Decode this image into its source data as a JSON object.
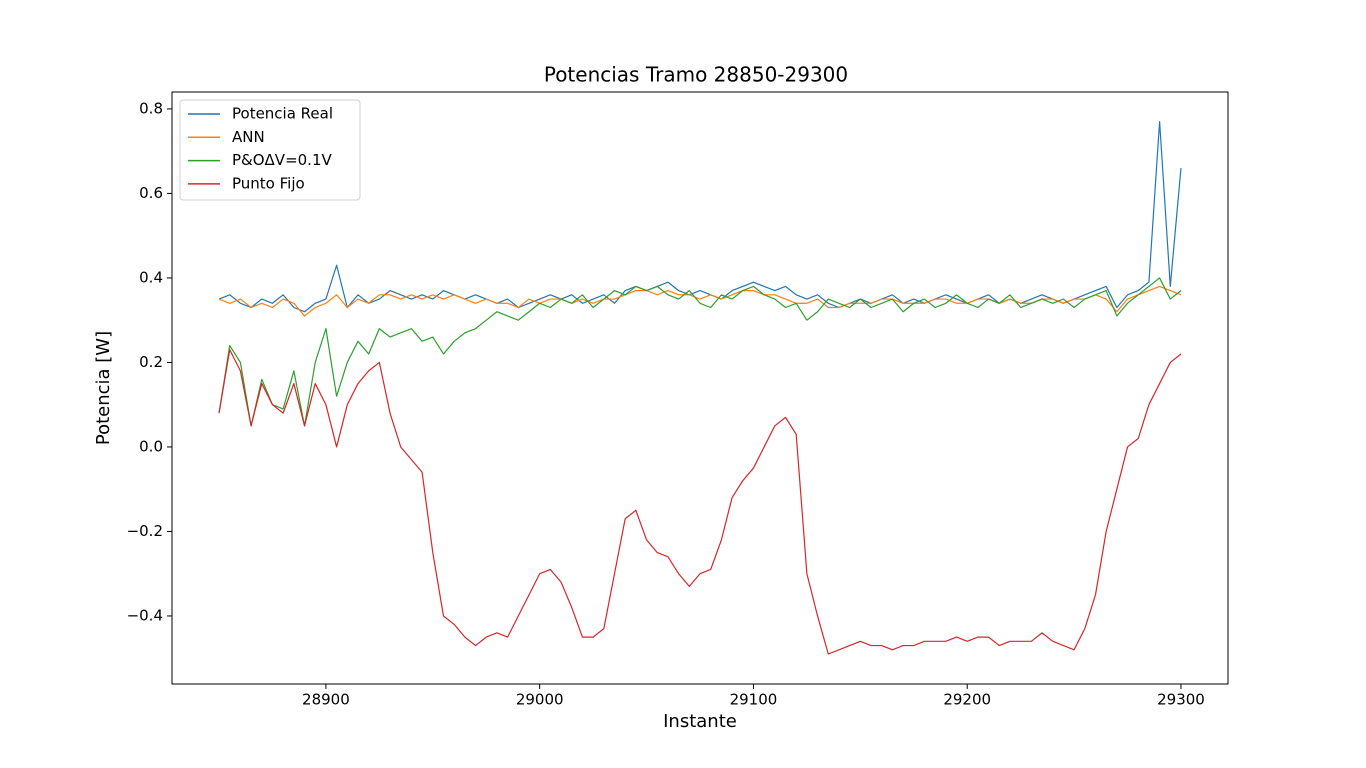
{
  "chart_data": {
    "type": "line",
    "title": "Potencias Tramo 28850-29300",
    "x_label": "Instante",
    "y_label": "Potencia [W]",
    "x": [
      28850,
      28855,
      28860,
      28865,
      28870,
      28875,
      28880,
      28885,
      28890,
      28895,
      28900,
      28905,
      28910,
      28915,
      28920,
      28925,
      28930,
      28935,
      28940,
      28945,
      28950,
      28955,
      28960,
      28965,
      28970,
      28975,
      28980,
      28985,
      28990,
      28995,
      29000,
      29005,
      29010,
      29015,
      29020,
      29025,
      29030,
      29035,
      29040,
      29045,
      29050,
      29055,
      29060,
      29065,
      29070,
      29075,
      29080,
      29085,
      29090,
      29095,
      29100,
      29105,
      29110,
      29115,
      29120,
      29125,
      29130,
      29135,
      29140,
      29145,
      29150,
      29155,
      29160,
      29165,
      29170,
      29175,
      29180,
      29185,
      29190,
      29195,
      29200,
      29205,
      29210,
      29215,
      29220,
      29225,
      29230,
      29235,
      29240,
      29245,
      29250,
      29255,
      29260,
      29265,
      29270,
      29275,
      29280,
      29285,
      29290,
      29295,
      29300
    ],
    "series": [
      {
        "name": "Potencia Real",
        "color": "#1f77b4",
        "values": [
          0.35,
          0.36,
          0.34,
          0.33,
          0.35,
          0.34,
          0.36,
          0.33,
          0.32,
          0.34,
          0.35,
          0.43,
          0.33,
          0.36,
          0.34,
          0.35,
          0.37,
          0.36,
          0.35,
          0.36,
          0.35,
          0.37,
          0.36,
          0.35,
          0.36,
          0.35,
          0.34,
          0.35,
          0.33,
          0.34,
          0.35,
          0.36,
          0.35,
          0.36,
          0.34,
          0.35,
          0.36,
          0.34,
          0.37,
          0.38,
          0.37,
          0.38,
          0.39,
          0.37,
          0.36,
          0.37,
          0.36,
          0.35,
          0.37,
          0.38,
          0.39,
          0.38,
          0.37,
          0.38,
          0.36,
          0.35,
          0.36,
          0.34,
          0.33,
          0.34,
          0.35,
          0.34,
          0.35,
          0.36,
          0.34,
          0.35,
          0.34,
          0.35,
          0.36,
          0.35,
          0.34,
          0.35,
          0.36,
          0.34,
          0.35,
          0.34,
          0.35,
          0.36,
          0.35,
          0.34,
          0.35,
          0.36,
          0.37,
          0.38,
          0.33,
          0.36,
          0.37,
          0.39,
          0.77,
          0.38,
          0.66
        ]
      },
      {
        "name": "ANN",
        "color": "#ff7f0e",
        "values": [
          0.35,
          0.34,
          0.35,
          0.33,
          0.34,
          0.33,
          0.35,
          0.34,
          0.31,
          0.33,
          0.34,
          0.36,
          0.33,
          0.35,
          0.34,
          0.36,
          0.36,
          0.35,
          0.36,
          0.35,
          0.36,
          0.35,
          0.36,
          0.35,
          0.34,
          0.35,
          0.34,
          0.34,
          0.33,
          0.35,
          0.34,
          0.35,
          0.35,
          0.34,
          0.35,
          0.34,
          0.35,
          0.35,
          0.36,
          0.37,
          0.37,
          0.36,
          0.37,
          0.36,
          0.36,
          0.35,
          0.36,
          0.35,
          0.36,
          0.37,
          0.37,
          0.36,
          0.36,
          0.35,
          0.34,
          0.34,
          0.35,
          0.33,
          0.33,
          0.34,
          0.34,
          0.34,
          0.35,
          0.35,
          0.34,
          0.34,
          0.34,
          0.35,
          0.35,
          0.34,
          0.34,
          0.35,
          0.35,
          0.34,
          0.35,
          0.34,
          0.34,
          0.35,
          0.35,
          0.34,
          0.35,
          0.35,
          0.36,
          0.35,
          0.32,
          0.35,
          0.36,
          0.37,
          0.38,
          0.37,
          0.36
        ]
      },
      {
        "name": "P&OΔV=0.1V",
        "color": "#2ca02c",
        "values": [
          0.08,
          0.24,
          0.2,
          0.05,
          0.16,
          0.1,
          0.09,
          0.18,
          0.05,
          0.2,
          0.28,
          0.12,
          0.2,
          0.25,
          0.22,
          0.28,
          0.26,
          0.27,
          0.28,
          0.25,
          0.26,
          0.22,
          0.25,
          0.27,
          0.28,
          0.3,
          0.32,
          0.31,
          0.3,
          0.32,
          0.34,
          0.33,
          0.35,
          0.34,
          0.36,
          0.33,
          0.35,
          0.37,
          0.36,
          0.38,
          0.37,
          0.38,
          0.36,
          0.35,
          0.37,
          0.34,
          0.33,
          0.36,
          0.35,
          0.37,
          0.38,
          0.36,
          0.35,
          0.33,
          0.34,
          0.3,
          0.32,
          0.35,
          0.34,
          0.33,
          0.35,
          0.33,
          0.34,
          0.35,
          0.32,
          0.34,
          0.35,
          0.33,
          0.34,
          0.36,
          0.34,
          0.33,
          0.35,
          0.34,
          0.36,
          0.33,
          0.34,
          0.35,
          0.34,
          0.35,
          0.33,
          0.35,
          0.36,
          0.37,
          0.31,
          0.34,
          0.36,
          0.38,
          0.4,
          0.35,
          0.37
        ]
      },
      {
        "name": "Punto Fijo",
        "color": "#d62728",
        "values": [
          0.08,
          0.23,
          0.18,
          0.05,
          0.15,
          0.1,
          0.08,
          0.15,
          0.05,
          0.15,
          0.1,
          0.0,
          0.1,
          0.15,
          0.18,
          0.2,
          0.08,
          0.0,
          -0.03,
          -0.06,
          -0.25,
          -0.4,
          -0.42,
          -0.45,
          -0.47,
          -0.45,
          -0.44,
          -0.45,
          -0.4,
          -0.35,
          -0.3,
          -0.29,
          -0.32,
          -0.38,
          -0.45,
          -0.45,
          -0.43,
          -0.3,
          -0.17,
          -0.15,
          -0.22,
          -0.25,
          -0.26,
          -0.3,
          -0.33,
          -0.3,
          -0.29,
          -0.22,
          -0.12,
          -0.08,
          -0.05,
          0.0,
          0.05,
          0.07,
          0.03,
          -0.3,
          -0.4,
          -0.49,
          -0.48,
          -0.47,
          -0.46,
          -0.47,
          -0.47,
          -0.48,
          -0.47,
          -0.47,
          -0.46,
          -0.46,
          -0.46,
          -0.45,
          -0.46,
          -0.45,
          -0.45,
          -0.47,
          -0.46,
          -0.46,
          -0.46,
          -0.44,
          -0.46,
          -0.47,
          -0.48,
          -0.43,
          -0.35,
          -0.2,
          -0.1,
          0.0,
          0.02,
          0.1,
          0.15,
          0.2,
          0.22
        ]
      }
    ],
    "xlim": [
      28828,
      29322
    ],
    "ylim": [
      -0.561,
      0.84
    ],
    "xticks": [
      28900,
      29000,
      29100,
      29200,
      29300
    ],
    "yticks": [
      {
        "value": -0.4,
        "label": "−0.4"
      },
      {
        "value": -0.2,
        "label": "−0.2"
      },
      {
        "value": 0,
        "label": "0.0"
      },
      0.2,
      0.4,
      0.6,
      0.8
    ],
    "legend": "upper left"
  }
}
